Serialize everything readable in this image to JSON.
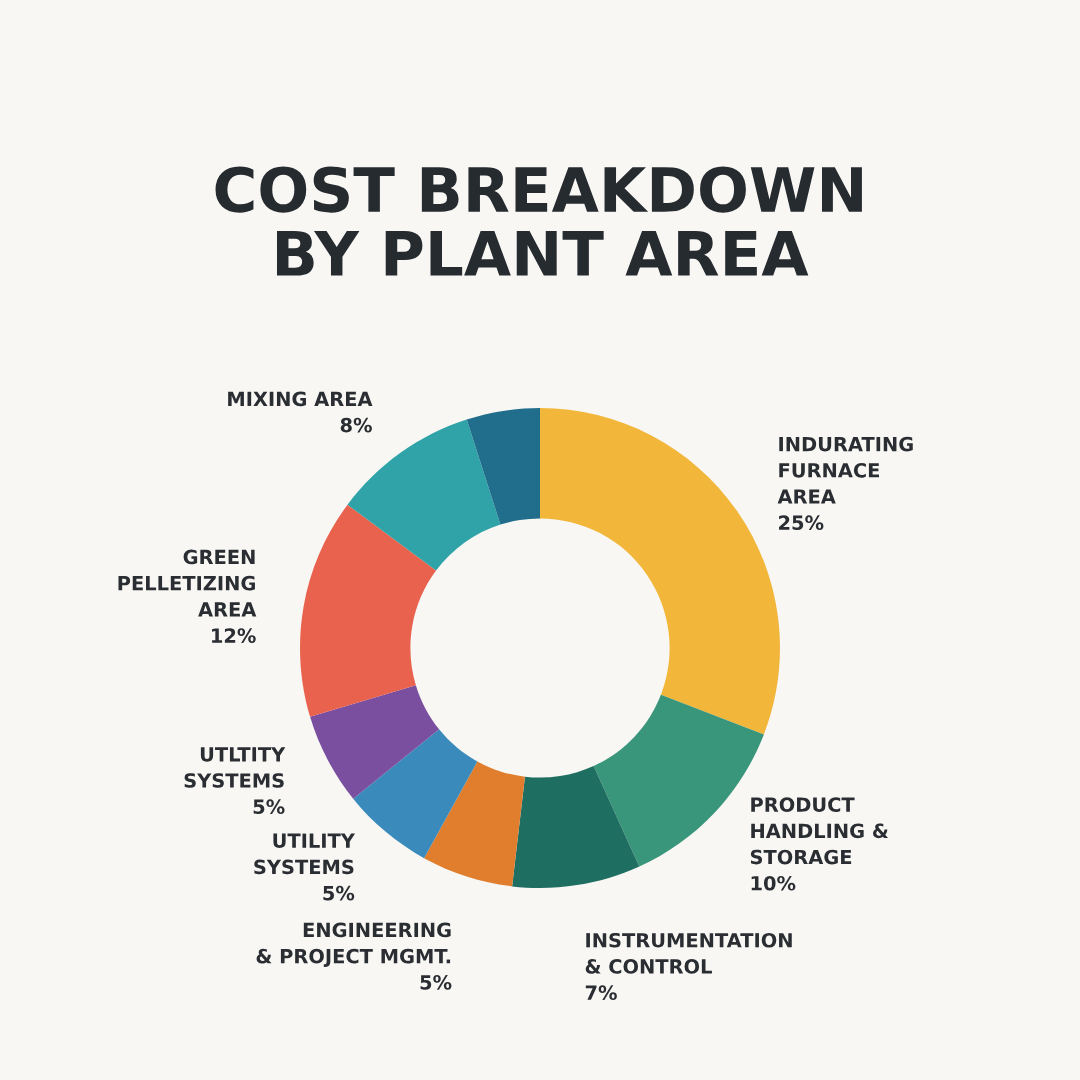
{
  "chart_data": {
    "type": "donut",
    "title": "COST BREAKDOWN\nBY PLANT AREA",
    "categories": [
      "INDURATING\nFURNACE\nAREA",
      "PRODUCT\nHANDLING &\nSTORAGE",
      "INSTRUMENTATION\n& CONTROL",
      "ENGINEERING\n& PROJECT MGMT.",
      "UTILITY\nSYSTEMS",
      "UTLTITY\nSYSTEMS",
      "GREEN\nPELLETIZING\nAREA",
      "MIXING AREA",
      null
    ],
    "values": [
      25,
      10,
      7,
      5,
      5,
      5,
      12,
      8,
      4
    ],
    "value_labels": [
      "25%",
      "10%",
      "7%",
      "5%",
      "5%",
      "5%",
      "12%",
      "8%",
      null
    ],
    "colors": [
      "#f2b63a",
      "#3a967a",
      "#1f6e62",
      "#e07e2e",
      "#3a8bbb",
      "#7b4fa0",
      "#e8624e",
      "#2fa3a8",
      "#206e8c"
    ],
    "legend": false
  }
}
